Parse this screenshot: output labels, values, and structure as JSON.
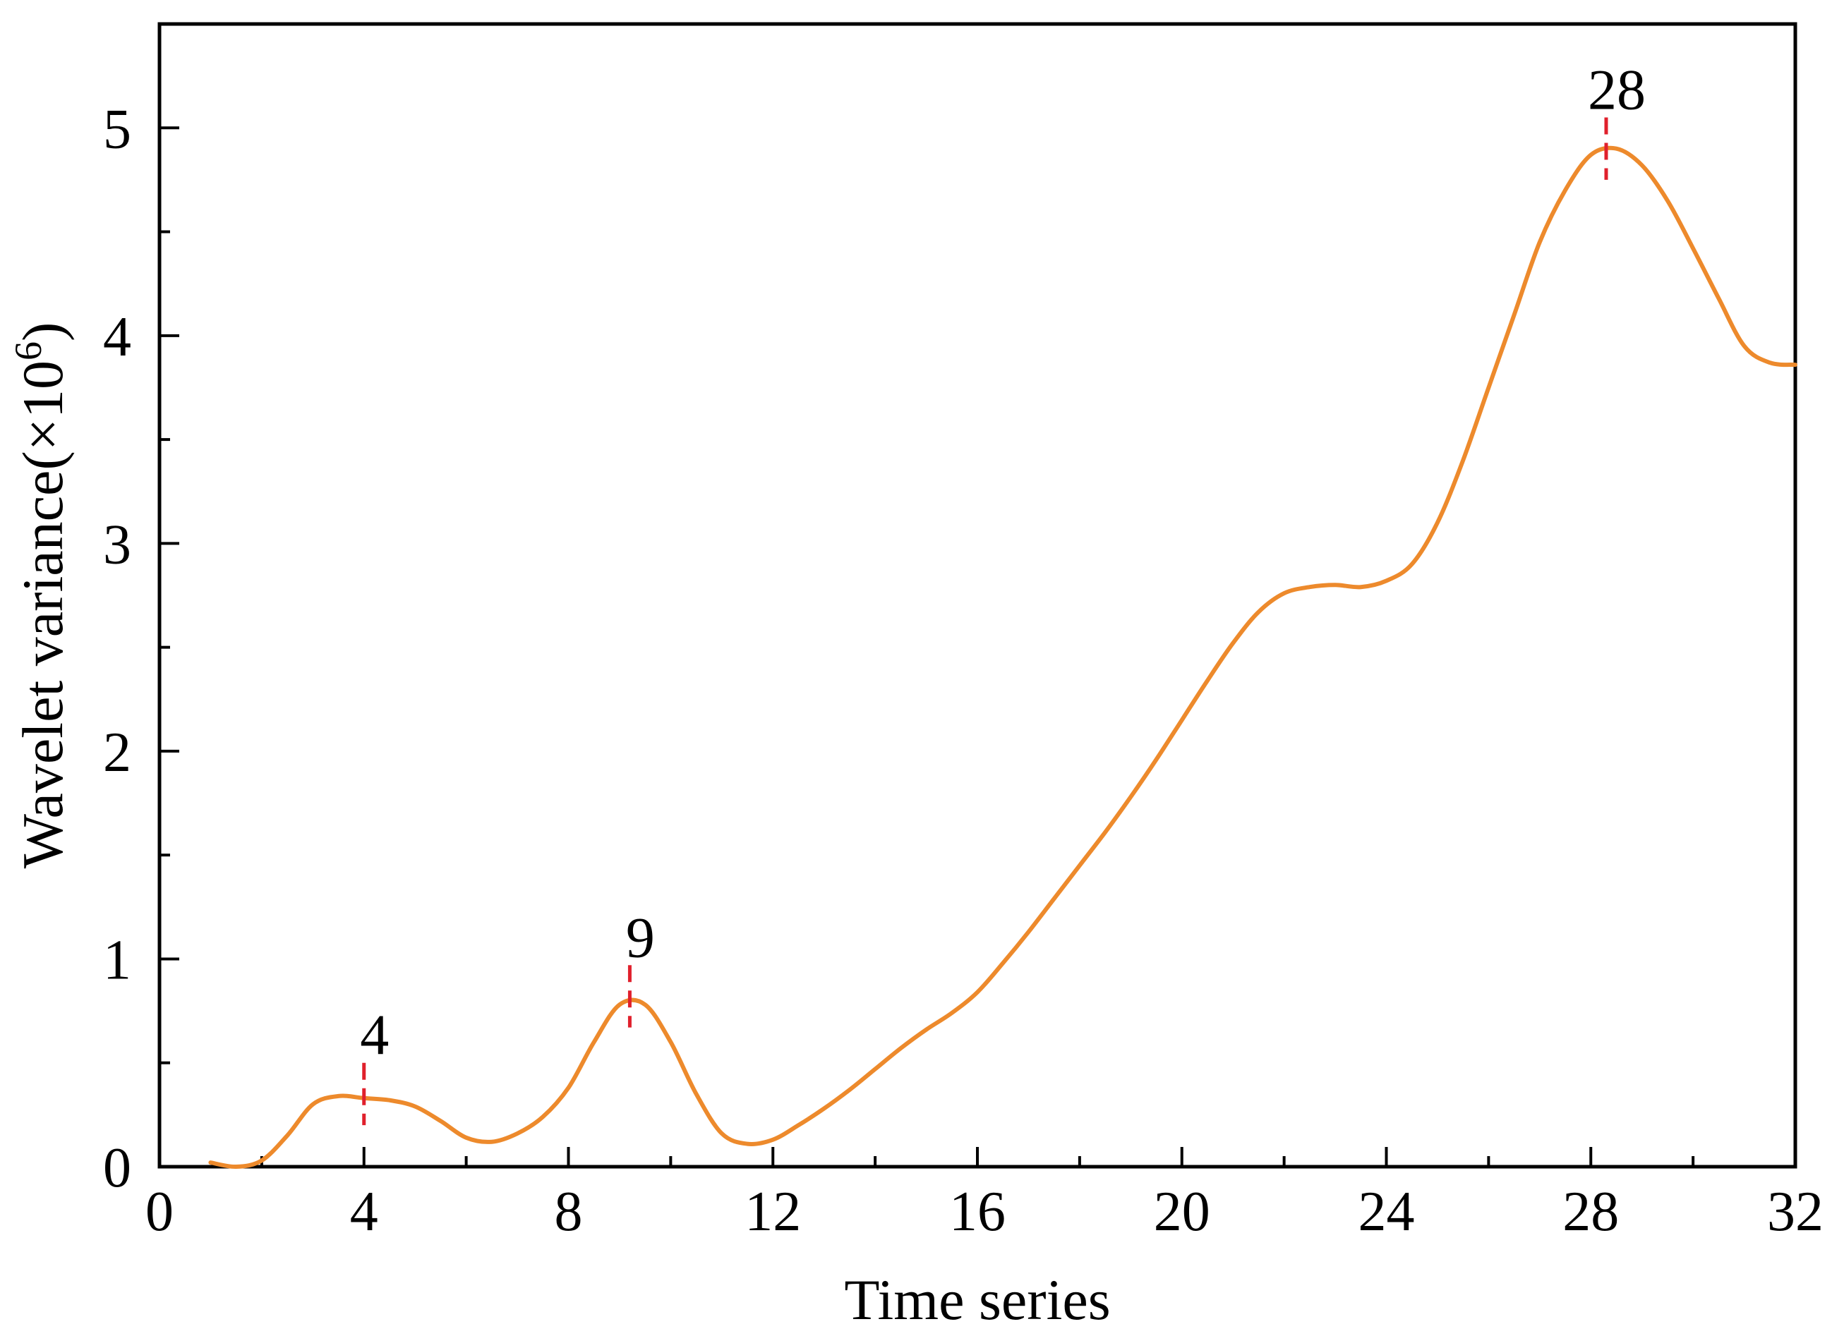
{
  "chart_data": {
    "type": "line",
    "title": "",
    "xlabel": "Time series",
    "ylabel": "Wavelet variance(×10",
    "ylabel_sup": "6",
    "ylabel_close": ")",
    "xlim": [
      0,
      32
    ],
    "ylim": [
      0,
      5.5
    ],
    "x_ticks": [
      0,
      4,
      8,
      12,
      16,
      20,
      24,
      28,
      32
    ],
    "x_tick_labels": [
      "0",
      "4",
      "8",
      "12",
      "16",
      "20",
      "24",
      "28",
      "32"
    ],
    "x_minor_ticks": [
      2,
      6,
      10,
      14,
      18,
      22,
      26,
      30
    ],
    "y_ticks": [
      0,
      1,
      2,
      3,
      4,
      5
    ],
    "y_tick_labels": [
      "0",
      "1",
      "2",
      "3",
      "4",
      "5"
    ],
    "y_minor_ticks": [
      0.5,
      1.5,
      2.5,
      3.5,
      4.5
    ],
    "grid": false,
    "series": [
      {
        "color": "#ED8A2C",
        "x": [
          1,
          1.5,
          2,
          2.5,
          3,
          3.5,
          4,
          4.5,
          5,
          5.5,
          6,
          6.5,
          7,
          7.5,
          8,
          8.5,
          9,
          9.5,
          10,
          10.5,
          11,
          11.5,
          12,
          12.5,
          13,
          13.5,
          14,
          14.5,
          15,
          15.5,
          16,
          16.5,
          17,
          17.5,
          18,
          18.5,
          19,
          19.5,
          20,
          20.5,
          21,
          21.5,
          22,
          22.5,
          23,
          23.5,
          24,
          24.5,
          25,
          25.5,
          26,
          26.5,
          27,
          27.5,
          28,
          28.5,
          29,
          29.5,
          30,
          30.5,
          31,
          31.5,
          32
        ],
        "y": [
          0.02,
          0,
          0.03,
          0.15,
          0.3,
          0.34,
          0.33,
          0.32,
          0.29,
          0.22,
          0.14,
          0.12,
          0.16,
          0.24,
          0.38,
          0.6,
          0.78,
          0.78,
          0.6,
          0.35,
          0.16,
          0.11,
          0.13,
          0.2,
          0.28,
          0.37,
          0.47,
          0.57,
          0.66,
          0.74,
          0.84,
          0.98,
          1.13,
          1.29,
          1.45,
          1.61,
          1.78,
          1.96,
          2.15,
          2.34,
          2.52,
          2.67,
          2.76,
          2.79,
          2.8,
          2.79,
          2.82,
          2.9,
          3.1,
          3.4,
          3.75,
          4.1,
          4.45,
          4.7,
          4.87,
          4.9,
          4.82,
          4.65,
          4.42,
          4.18,
          3.95,
          3.87,
          3.86
        ]
      }
    ],
    "annotations": [
      {
        "x": 4,
        "y_top": 0.5,
        "y_bottom": 0.2,
        "label": "4",
        "color": "#E0202C"
      },
      {
        "x": 9.2,
        "y_top": 0.97,
        "y_bottom": 0.67,
        "label": "9",
        "color": "#E0202C"
      },
      {
        "x": 28.3,
        "y_top": 5.05,
        "y_bottom": 4.75,
        "label": "28",
        "color": "#E0202C"
      }
    ]
  }
}
